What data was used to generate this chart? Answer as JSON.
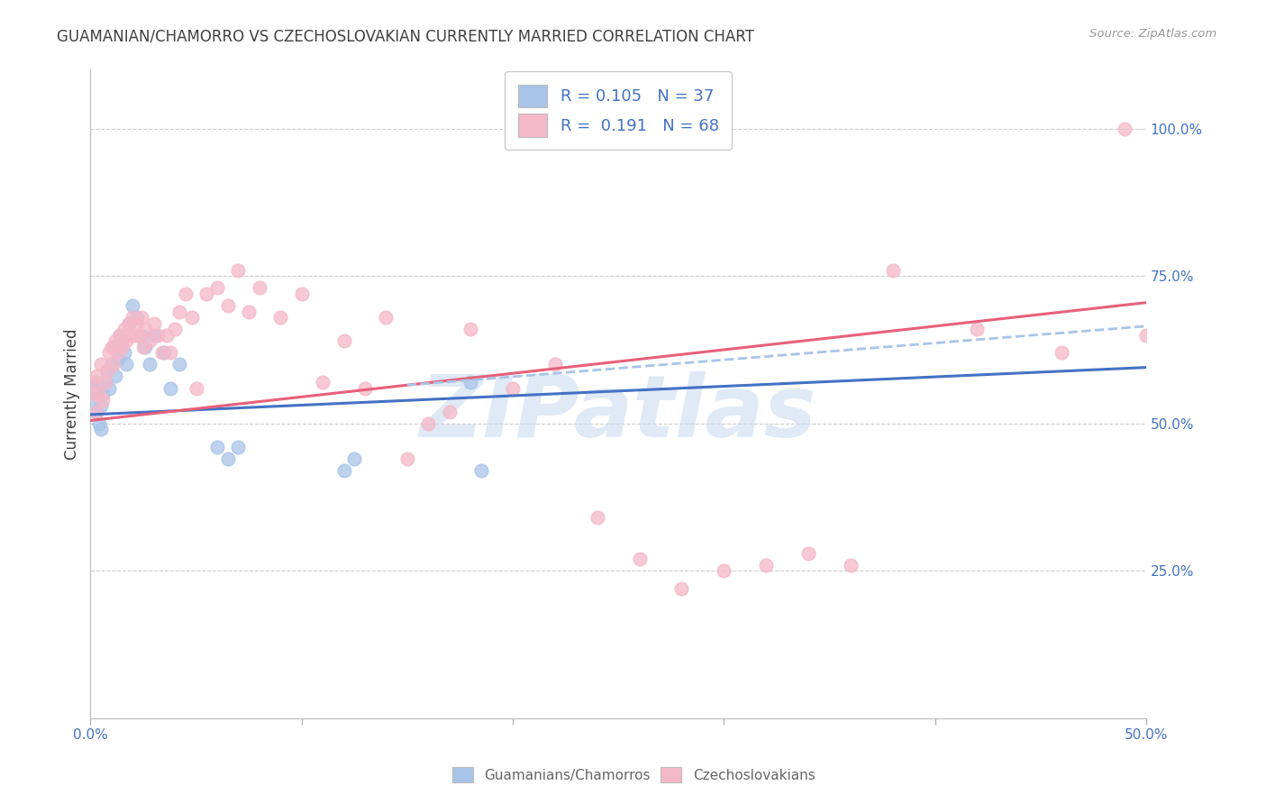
{
  "title": "GUAMANIAN/CHAMORRO VS CZECHOSLOVAKIAN CURRENTLY MARRIED CORRELATION CHART",
  "source": "Source: ZipAtlas.com",
  "ylabel": "Currently Married",
  "xlim": [
    0.0,
    0.5
  ],
  "ylim": [
    0.0,
    1.1
  ],
  "xticks": [
    0.0,
    0.1,
    0.2,
    0.3,
    0.4,
    0.5
  ],
  "xticklabels_show_only": [
    0,
    5
  ],
  "xticklabels": [
    "0.0%",
    "",
    "",
    "",
    "",
    "50.0%"
  ],
  "yticks": [
    0.25,
    0.5,
    0.75,
    1.0
  ],
  "yticklabels": [
    "25.0%",
    "50.0%",
    "75.0%",
    "100.0%"
  ],
  "legend_r1": "R = 0.105",
  "legend_n1": "N = 37",
  "legend_r2": "R =  0.191",
  "legend_n2": "N = 68",
  "blue_color": "#a8c4e8",
  "pink_color": "#f5b8c8",
  "blue_line_color": "#4472c4",
  "pink_line_color": "#e8607a",
  "dashed_line_color": "#a8c4e8",
  "watermark": "ZIPatlas",
  "watermark_color": "#c8d8f0",
  "title_color": "#404040",
  "axis_label_color": "#404040",
  "tick_color": "#4472c4",
  "grid_color": "#c8c8c8",
  "blue_points_x": [
    0.001,
    0.002,
    0.003,
    0.003,
    0.004,
    0.004,
    0.005,
    0.005,
    0.006,
    0.007,
    0.008,
    0.009,
    0.01,
    0.011,
    0.012,
    0.013,
    0.014,
    0.015,
    0.016,
    0.017,
    0.018,
    0.02,
    0.022,
    0.024,
    0.026,
    0.028,
    0.03,
    0.035,
    0.038,
    0.042,
    0.06,
    0.065,
    0.07,
    0.12,
    0.125,
    0.18,
    0.185
  ],
  "blue_points_y": [
    0.56,
    0.54,
    0.52,
    0.57,
    0.5,
    0.55,
    0.49,
    0.53,
    0.55,
    0.57,
    0.59,
    0.56,
    0.6,
    0.63,
    0.58,
    0.61,
    0.65,
    0.64,
    0.62,
    0.6,
    0.67,
    0.7,
    0.68,
    0.65,
    0.63,
    0.6,
    0.65,
    0.62,
    0.56,
    0.6,
    0.46,
    0.44,
    0.46,
    0.42,
    0.44,
    0.57,
    0.42
  ],
  "pink_points_x": [
    0.001,
    0.002,
    0.003,
    0.003,
    0.004,
    0.005,
    0.006,
    0.007,
    0.008,
    0.009,
    0.01,
    0.011,
    0.012,
    0.013,
    0.014,
    0.015,
    0.016,
    0.017,
    0.018,
    0.019,
    0.02,
    0.021,
    0.022,
    0.023,
    0.024,
    0.025,
    0.026,
    0.028,
    0.03,
    0.032,
    0.034,
    0.036,
    0.038,
    0.04,
    0.042,
    0.045,
    0.048,
    0.05,
    0.055,
    0.06,
    0.065,
    0.07,
    0.075,
    0.08,
    0.09,
    0.1,
    0.11,
    0.12,
    0.13,
    0.14,
    0.15,
    0.16,
    0.17,
    0.18,
    0.2,
    0.22,
    0.24,
    0.26,
    0.28,
    0.3,
    0.32,
    0.34,
    0.36,
    0.38,
    0.42,
    0.46,
    0.49,
    0.5
  ],
  "pink_points_y": [
    0.55,
    0.57,
    0.52,
    0.58,
    0.55,
    0.6,
    0.54,
    0.57,
    0.59,
    0.62,
    0.63,
    0.6,
    0.64,
    0.62,
    0.65,
    0.63,
    0.66,
    0.64,
    0.67,
    0.65,
    0.68,
    0.65,
    0.67,
    0.65,
    0.68,
    0.63,
    0.66,
    0.64,
    0.67,
    0.65,
    0.62,
    0.65,
    0.62,
    0.66,
    0.69,
    0.72,
    0.68,
    0.56,
    0.72,
    0.73,
    0.7,
    0.76,
    0.69,
    0.73,
    0.68,
    0.72,
    0.57,
    0.64,
    0.56,
    0.68,
    0.44,
    0.5,
    0.52,
    0.66,
    0.56,
    0.6,
    0.34,
    0.27,
    0.22,
    0.25,
    0.26,
    0.28,
    0.26,
    0.76,
    0.66,
    0.62,
    1.0,
    0.65
  ],
  "blue_trend_x": [
    0.0,
    0.5
  ],
  "blue_trend_y": [
    0.515,
    0.595
  ],
  "pink_trend_x": [
    0.0,
    0.5
  ],
  "pink_trend_y": [
    0.505,
    0.705
  ],
  "dashed_trend_x": [
    0.15,
    0.5
  ],
  "dashed_trend_y": [
    0.565,
    0.665
  ]
}
